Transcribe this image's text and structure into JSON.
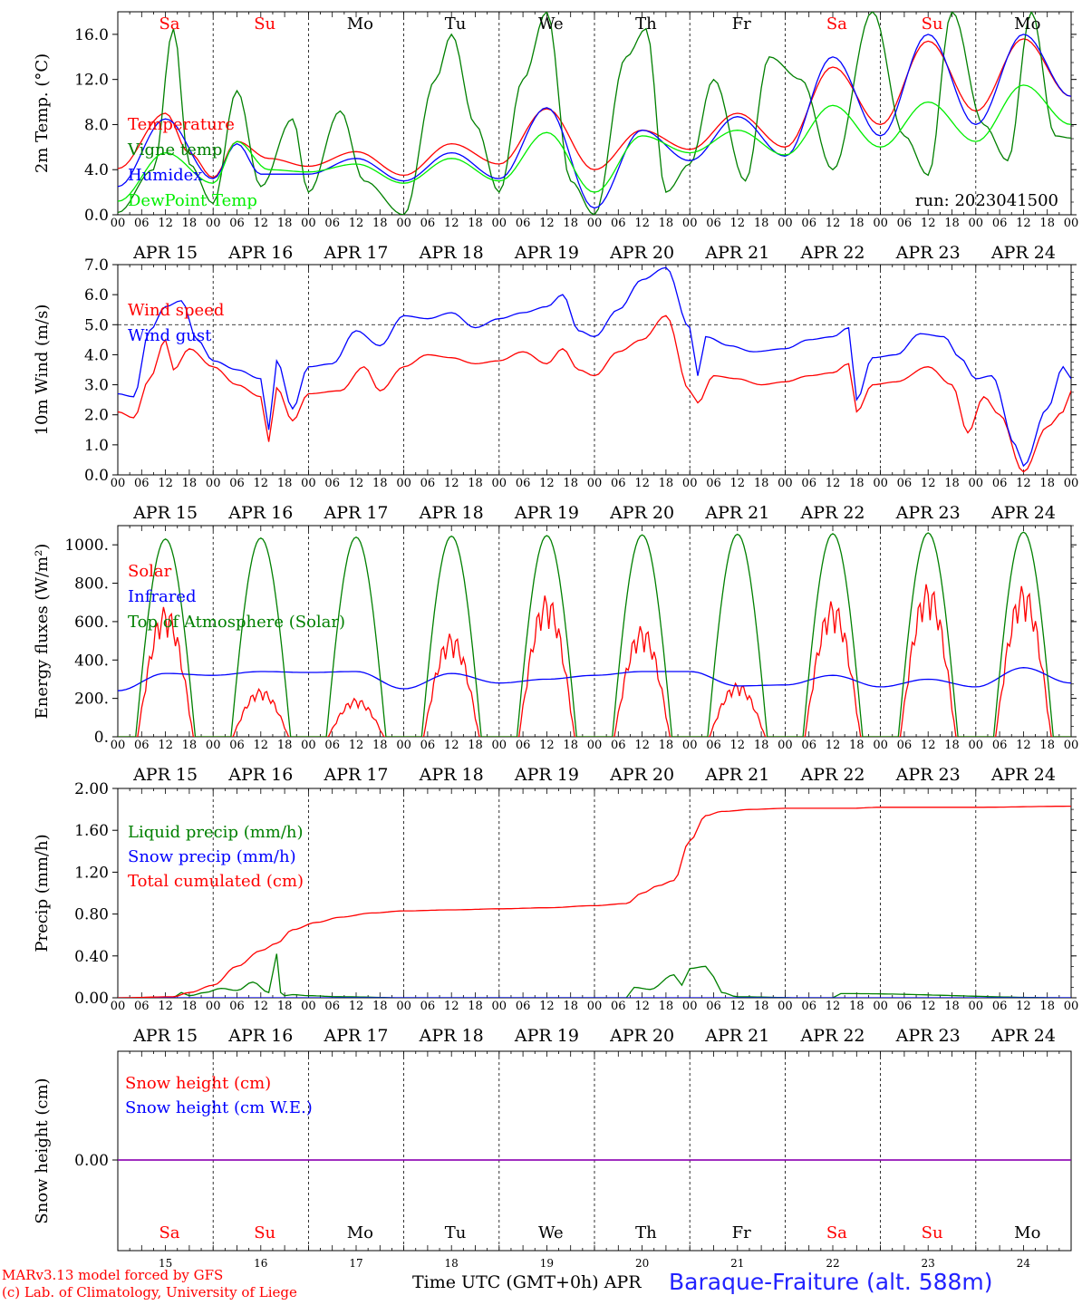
{
  "footer": {
    "model": "MARv3.13 model forced by GFS",
    "credit": "(c) Lab. of Climatology, University of Liege",
    "time_label": "Time UTC (GMT+0h) APR",
    "station": "Baraque-Fraiture (alt. 588m)"
  },
  "days": [
    {
      "label": "Sa",
      "date": "APR 15",
      "num": "15",
      "color": "#ff0000"
    },
    {
      "label": "Su",
      "date": "APR 16",
      "num": "16",
      "color": "#ff0000"
    },
    {
      "label": "Mo",
      "date": "APR 17",
      "num": "17",
      "color": "#000000"
    },
    {
      "label": "Tu",
      "date": "APR 18",
      "num": "18",
      "color": "#000000"
    },
    {
      "label": "We",
      "date": "APR 19",
      "num": "19",
      "color": "#000000"
    },
    {
      "label": "Th",
      "date": "APR 20",
      "num": "20",
      "color": "#000000"
    },
    {
      "label": "Fr",
      "date": "APR 21",
      "num": "21",
      "color": "#000000"
    },
    {
      "label": "Sa",
      "date": "APR 22",
      "num": "22",
      "color": "#ff0000"
    },
    {
      "label": "Su",
      "date": "APR 23",
      "num": "23",
      "color": "#ff0000"
    },
    {
      "label": "Mo",
      "date": "APR 24",
      "num": "24",
      "color": "#000000"
    }
  ],
  "hour_ticks": [
    "00",
    "06",
    "12",
    "18"
  ],
  "hour_end": "00",
  "chart_data": [
    {
      "type": "line",
      "ylabel": "2m Temp. (°C)",
      "ylim": [
        0,
        18
      ],
      "yticks": [
        "0.0",
        "4.0",
        "8.0",
        "12.0",
        "16.0"
      ],
      "ytick_values": [
        0,
        4,
        8,
        12,
        16
      ],
      "annotation": "run: 2023041500",
      "x_unit": "hours since APR 15 00 UTC",
      "series": [
        {
          "name": "Temperature",
          "color": "#ff0000",
          "x": [
            0,
            12,
            18,
            24,
            30,
            38,
            48,
            60,
            72,
            84,
            96,
            108,
            120,
            132,
            144,
            156,
            168,
            180,
            192,
            204,
            216,
            228,
            240
          ],
          "y": [
            4.1,
            9.0,
            5.5,
            3.3,
            6.5,
            5.0,
            4.3,
            5.6,
            3.5,
            6.3,
            4.5,
            9.4,
            4.0,
            7.5,
            5.8,
            9.0,
            6.0,
            13.1,
            8.0,
            15.4,
            9.2,
            15.6,
            10.5
          ]
        },
        {
          "name": "Vigne temp",
          "color": "#008000",
          "x": [
            0,
            9,
            14,
            18,
            24,
            30,
            36,
            44,
            48,
            56,
            62,
            72,
            80,
            84,
            90,
            96,
            102,
            108,
            114,
            120,
            128,
            133,
            138,
            144,
            150,
            158,
            164,
            172,
            180,
            190,
            198,
            204,
            210,
            218,
            224,
            230,
            236,
            240
          ],
          "y": [
            0.2,
            4.0,
            16.5,
            4.5,
            1.0,
            11.0,
            2.5,
            8.5,
            2.0,
            9.2,
            3.0,
            0.0,
            12.0,
            16.0,
            8.0,
            2.0,
            12.0,
            18.0,
            3.0,
            0.0,
            14.0,
            16.5,
            2.0,
            4.5,
            12.0,
            3.0,
            14.0,
            12.0,
            4.0,
            18.0,
            7.0,
            3.5,
            18.0,
            8.0,
            4.8,
            18.0,
            7.0,
            6.8
          ]
        },
        {
          "name": "Humidex",
          "color": "#0000ff",
          "x": [
            0,
            12,
            24,
            30,
            36,
            48,
            60,
            72,
            84,
            96,
            108,
            120,
            132,
            144,
            156,
            168,
            180,
            192,
            204,
            216,
            228,
            240
          ],
          "y": [
            2.5,
            8.5,
            3.2,
            6.3,
            3.6,
            3.6,
            5.0,
            3.0,
            5.5,
            3.2,
            9.5,
            0.6,
            7.5,
            4.8,
            8.7,
            5.2,
            14.0,
            7.0,
            16.0,
            8.0,
            16.0,
            10.5
          ]
        },
        {
          "name": "DewPoint Temp",
          "color": "#00ee00",
          "x": [
            0,
            12,
            24,
            30,
            38,
            48,
            60,
            72,
            84,
            96,
            108,
            120,
            132,
            144,
            156,
            168,
            180,
            192,
            204,
            216,
            228,
            240
          ],
          "y": [
            1.2,
            5.5,
            2.8,
            6.5,
            4.0,
            3.8,
            4.5,
            2.8,
            5.0,
            3.0,
            7.3,
            2.0,
            7.0,
            5.5,
            7.5,
            5.3,
            9.7,
            6.0,
            10.0,
            6.5,
            11.5,
            8.0
          ]
        }
      ]
    },
    {
      "type": "line",
      "ylabel": "10m Wind (m/s)",
      "ylim": [
        0,
        7
      ],
      "yticks": [
        "0.0",
        "1.0",
        "2.0",
        "3.0",
        "4.0",
        "5.0",
        "6.0",
        "7.0"
      ],
      "ytick_values": [
        0,
        1,
        2,
        3,
        4,
        5,
        6,
        7
      ],
      "dashed_ref": 5,
      "series": [
        {
          "name": "Wind speed",
          "color": "#ff0000",
          "x": [
            0,
            4,
            8,
            12,
            14,
            18,
            24,
            30,
            36,
            38,
            40,
            44,
            48,
            56,
            62,
            66,
            72,
            78,
            84,
            90,
            96,
            102,
            108,
            112,
            116,
            120,
            126,
            132,
            138,
            144,
            146,
            150,
            156,
            162,
            168,
            174,
            180,
            184,
            186,
            190,
            196,
            204,
            210,
            214,
            218,
            222,
            228,
            234,
            238,
            240
          ],
          "y": [
            2.1,
            1.9,
            3.2,
            4.5,
            3.5,
            4.2,
            3.6,
            3.0,
            2.6,
            1.1,
            2.9,
            1.8,
            2.7,
            2.8,
            3.6,
            2.8,
            3.6,
            4.0,
            3.9,
            3.7,
            3.8,
            4.1,
            3.7,
            4.2,
            3.5,
            3.3,
            4.1,
            4.5,
            5.3,
            2.8,
            2.4,
            3.3,
            3.2,
            3.0,
            3.1,
            3.3,
            3.4,
            3.7,
            2.1,
            3.0,
            3.1,
            3.6,
            3.0,
            1.4,
            2.6,
            2.0,
            0.1,
            1.6,
            2.1,
            2.8
          ]
        },
        {
          "name": "Wind gust",
          "color": "#0000ff",
          "x": [
            0,
            4,
            8,
            12,
            16,
            20,
            24,
            30,
            36,
            38,
            40,
            44,
            48,
            54,
            60,
            66,
            72,
            78,
            84,
            90,
            96,
            102,
            108,
            112,
            116,
            120,
            126,
            132,
            138,
            144,
            146,
            148,
            154,
            160,
            168,
            174,
            180,
            184,
            186,
            190,
            196,
            202,
            208,
            212,
            216,
            220,
            226,
            228,
            234,
            238,
            240
          ],
          "y": [
            2.7,
            2.6,
            4.8,
            5.6,
            5.8,
            4.5,
            3.8,
            3.5,
            3.2,
            1.5,
            3.8,
            2.2,
            3.6,
            3.7,
            4.8,
            4.3,
            5.3,
            5.2,
            5.4,
            4.9,
            5.2,
            5.4,
            5.6,
            6.0,
            4.8,
            4.6,
            5.5,
            6.5,
            6.9,
            4.9,
            3.3,
            4.6,
            4.3,
            4.1,
            4.2,
            4.5,
            4.6,
            4.9,
            2.5,
            3.9,
            4.0,
            4.7,
            4.6,
            3.9,
            3.2,
            3.3,
            1.0,
            0.3,
            2.2,
            3.6,
            3.2
          ]
        }
      ]
    },
    {
      "type": "line",
      "ylabel": "Energy fluxes (W/m²)",
      "ylim": [
        0,
        1100
      ],
      "yticks": [
        "0.",
        "200.",
        "400.",
        "600.",
        "800.",
        "1000."
      ],
      "ytick_values": [
        0,
        200,
        400,
        600,
        800,
        1000
      ],
      "series": [
        {
          "name": "Solar",
          "color": "#ff0000",
          "peaks": [
            {
              "start": 5,
              "end": 19,
              "peak": 680
            },
            {
              "start": 29,
              "end": 43,
              "peak": 250
            },
            {
              "start": 53,
              "end": 67,
              "peak": 200
            },
            {
              "start": 77,
              "end": 91,
              "peak": 540
            },
            {
              "start": 101,
              "end": 115,
              "peak": 740
            },
            {
              "start": 125,
              "end": 139,
              "peak": 580
            },
            {
              "start": 149,
              "end": 163,
              "peak": 280
            },
            {
              "start": 173,
              "end": 187,
              "peak": 710
            },
            {
              "start": 197,
              "end": 211,
              "peak": 800
            },
            {
              "start": 221,
              "end": 235,
              "peak": 790
            }
          ]
        },
        {
          "name": "Infrared",
          "color": "#0000ff",
          "x": [
            0,
            12,
            24,
            36,
            48,
            60,
            72,
            84,
            96,
            108,
            120,
            132,
            144,
            156,
            168,
            180,
            192,
            204,
            216,
            228,
            240
          ],
          "y": [
            240,
            330,
            320,
            340,
            335,
            340,
            250,
            330,
            280,
            300,
            320,
            340,
            340,
            265,
            270,
            320,
            260,
            300,
            260,
            360,
            280
          ]
        },
        {
          "name": "Top of Atmosphere (Solar)",
          "color": "#008000",
          "peaks": [
            {
              "start": 4.5,
              "end": 19.5,
              "peak": 1030
            },
            {
              "start": 28.5,
              "end": 43.5,
              "peak": 1035
            },
            {
              "start": 52.5,
              "end": 67.5,
              "peak": 1040
            },
            {
              "start": 76.5,
              "end": 91.5,
              "peak": 1045
            },
            {
              "start": 100.5,
              "end": 115.5,
              "peak": 1048
            },
            {
              "start": 124.5,
              "end": 139.5,
              "peak": 1052
            },
            {
              "start": 148.5,
              "end": 163.5,
              "peak": 1055
            },
            {
              "start": 172.5,
              "end": 187.5,
              "peak": 1058
            },
            {
              "start": 196.5,
              "end": 211.5,
              "peak": 1062
            },
            {
              "start": 220.5,
              "end": 235.5,
              "peak": 1066
            }
          ]
        }
      ]
    },
    {
      "type": "line",
      "ylabel": "Precip (mm/h)",
      "ylim": [
        0,
        2.0
      ],
      "yticks": [
        "0.00",
        "0.40",
        "0.80",
        "1.20",
        "1.60",
        "2.00"
      ],
      "ytick_values": [
        0,
        0.4,
        0.8,
        1.2,
        1.6,
        2.0
      ],
      "series": [
        {
          "name": "Liquid precip (mm/h)",
          "color": "#008000",
          "x": [
            0,
            14,
            16,
            18,
            22,
            26,
            30,
            34,
            38,
            40,
            41,
            42,
            44,
            48,
            56,
            72,
            128,
            130,
            134,
            140,
            142,
            144,
            148,
            150,
            152,
            156,
            172,
            180,
            182,
            240
          ],
          "y": [
            0,
            0,
            0.05,
            0.02,
            0.05,
            0.09,
            0.07,
            0.15,
            0.05,
            0.42,
            0.05,
            0.02,
            0.03,
            0.02,
            0.01,
            0,
            0,
            0.1,
            0.08,
            0.22,
            0.12,
            0.28,
            0.3,
            0.2,
            0.05,
            0.01,
            0,
            0,
            0.04,
            0
          ]
        },
        {
          "name": "Snow precip (mm/h)",
          "color": "#0000ff",
          "x": [
            0,
            240
          ],
          "y": [
            0,
            0
          ]
        },
        {
          "name": "Total cumulated (cm)",
          "color": "#ff0000",
          "x": [
            0,
            14,
            18,
            24,
            30,
            36,
            40,
            44,
            50,
            56,
            64,
            72,
            84,
            96,
            108,
            120,
            128,
            132,
            136,
            140,
            144,
            148,
            152,
            160,
            168,
            184,
            192,
            216,
            240
          ],
          "y": [
            0,
            0.01,
            0.05,
            0.12,
            0.3,
            0.45,
            0.52,
            0.65,
            0.72,
            0.77,
            0.81,
            0.83,
            0.84,
            0.85,
            0.86,
            0.88,
            0.9,
            1.0,
            1.07,
            1.12,
            1.5,
            1.74,
            1.78,
            1.8,
            1.81,
            1.81,
            1.82,
            1.82,
            1.83
          ]
        }
      ]
    },
    {
      "type": "line",
      "ylabel": "Snow height (cm)",
      "ytick_label": "0.00",
      "series": [
        {
          "name": "Snow height (cm)",
          "color": "#ff0000",
          "x": [
            0,
            240
          ],
          "y": [
            0,
            0
          ]
        },
        {
          "name": "Snow height (cm W.E.)",
          "color": "#0000ff",
          "x": [
            0,
            240
          ],
          "y": [
            0,
            0
          ]
        }
      ]
    }
  ]
}
